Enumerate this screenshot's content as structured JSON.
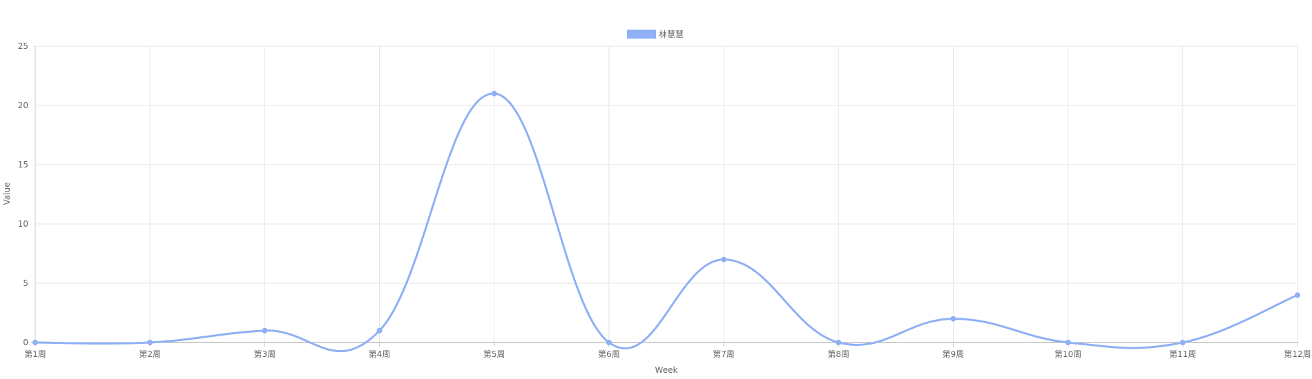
{
  "chart_data": {
    "type": "line",
    "categories": [
      "第1周",
      "第2周",
      "第3周",
      "第4周",
      "第5周",
      "第6周",
      "第7周",
      "第8周",
      "第9周",
      "第10周",
      "第11周",
      "第12周"
    ],
    "series": [
      {
        "name": "林慧慧",
        "values": [
          0,
          0,
          1,
          1,
          21,
          0,
          7,
          0,
          2,
          0,
          0,
          4
        ],
        "color": "#8fb0f5"
      }
    ],
    "xlabel": "Week",
    "ylabel": "Value",
    "ylim": [
      0,
      25
    ],
    "yticks": [
      "0",
      "5",
      "10",
      "15",
      "20",
      "25"
    ],
    "grid": true,
    "legend_position": "top-center",
    "smooth": true
  }
}
